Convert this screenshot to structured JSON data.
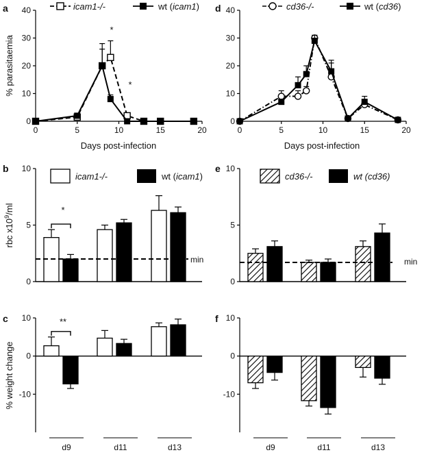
{
  "chart_data": [
    {
      "panel": "a",
      "type": "line",
      "xlabel": "Days post-infection",
      "ylabel": "% parasitaemia",
      "xlim": [
        0,
        20
      ],
      "ylim": [
        0,
        40
      ],
      "xticks": [
        "0",
        "5",
        "10",
        "15",
        "20"
      ],
      "yticks": [
        "0",
        "10",
        "20",
        "30",
        "40"
      ],
      "series": [
        {
          "name_italic": "icam1-/-",
          "name_plain": "",
          "name_tail": "",
          "marker": "open-square",
          "line": "dashed",
          "x": [
            0,
            5,
            8,
            9,
            11,
            13,
            15,
            19
          ],
          "y": [
            0,
            1.5,
            20,
            23,
            2,
            0,
            0,
            0
          ],
          "err": [
            0,
            0.5,
            8,
            6,
            0.5,
            0,
            0,
            0
          ]
        },
        {
          "name_italic": "icam1",
          "name_plain": "wt (",
          "name_tail": ")",
          "marker": "filled-square",
          "line": "solid",
          "x": [
            0,
            5,
            8,
            9,
            11,
            13,
            15,
            19
          ],
          "y": [
            0,
            2,
            20,
            8,
            0,
            0,
            0,
            0
          ],
          "err": [
            0,
            0.5,
            6,
            1.5,
            0,
            0,
            0,
            0
          ]
        }
      ],
      "annotations": [
        "*",
        "*"
      ]
    },
    {
      "panel": "d",
      "type": "line",
      "xlabel": "Days post-infection",
      "ylabel": "",
      "xlim": [
        0,
        20
      ],
      "ylim": [
        0,
        40
      ],
      "xticks": [
        "0",
        "5",
        "10",
        "15",
        "20"
      ],
      "yticks": [
        "0",
        "10",
        "20",
        "30",
        "40"
      ],
      "series": [
        {
          "name_italic": "cd36-/-",
          "name_plain": "",
          "name_tail": "",
          "marker": "open-circle",
          "line": "dashdot",
          "x": [
            0,
            5,
            7,
            8,
            9,
            11,
            13,
            15,
            19
          ],
          "y": [
            0,
            9,
            9,
            11,
            30,
            16,
            1,
            6,
            0.5
          ],
          "err": [
            0,
            2,
            2,
            1.5,
            1,
            6,
            0,
            1.5,
            0
          ]
        },
        {
          "name_italic": "cd36",
          "name_plain": "wt (",
          "name_tail": ")",
          "marker": "filled-square",
          "line": "solid",
          "x": [
            0,
            5,
            7,
            8,
            9,
            11,
            13,
            15,
            19
          ],
          "y": [
            0,
            7,
            13,
            17,
            29,
            18,
            1,
            7,
            0.5
          ],
          "err": [
            0,
            1,
            3,
            3,
            2,
            3,
            0,
            2,
            0
          ]
        }
      ]
    },
    {
      "panel": "b",
      "type": "bar",
      "ylabel_main": "rbc x10",
      "ylabel_sup": "9",
      "ylabel_tail": "/ml",
      "ylim": [
        0,
        10
      ],
      "yticks": [
        "0",
        "5",
        "10"
      ],
      "categories": [
        "d9",
        "d11",
        "d13"
      ],
      "series": [
        {
          "name_italic": "icam1-/-",
          "name_plain": "",
          "name_tail": "",
          "fill": "white",
          "values": [
            3.9,
            4.6,
            6.3
          ],
          "err": [
            0.7,
            0.4,
            1.3
          ]
        },
        {
          "name_italic": "icam1",
          "name_plain": "wt (",
          "name_tail": ")",
          "fill": "black",
          "values": [
            2.0,
            5.2,
            6.1
          ],
          "err": [
            0.4,
            0.3,
            0.5
          ]
        }
      ],
      "reference_line": {
        "value": 2.0,
        "label": "min"
      },
      "significance": [
        {
          "category": "d9",
          "label": "*"
        }
      ]
    },
    {
      "panel": "e",
      "type": "bar",
      "ylim": [
        0,
        10
      ],
      "yticks": [
        "0",
        "5",
        "10"
      ],
      "categories": [
        "d9",
        "d11",
        "d13"
      ],
      "series": [
        {
          "name_italic": "cd36-/-",
          "name_plain": "",
          "name_tail": "",
          "fill": "hatched",
          "values": [
            2.5,
            1.7,
            3.1
          ],
          "err": [
            0.4,
            0.2,
            0.5
          ]
        },
        {
          "name_italic": "wt (cd36)",
          "name_plain": "",
          "name_tail": "",
          "fill": "black",
          "values": [
            3.1,
            1.7,
            4.3
          ],
          "err": [
            0.5,
            0.3,
            0.8
          ]
        }
      ],
      "reference_line": {
        "value": 1.7,
        "label": "min"
      }
    },
    {
      "panel": "c",
      "type": "bar",
      "ylabel": "% weight change",
      "ylim": [
        -20,
        10
      ],
      "yticks": [
        "10",
        "0",
        "-10"
      ],
      "categories": [
        "d9",
        "d11",
        "d13"
      ],
      "series": [
        {
          "name": "icam1-/-",
          "fill": "white",
          "values": [
            2.7,
            4.7,
            7.7
          ],
          "err": [
            2.3,
            2.0,
            1.0
          ]
        },
        {
          "name": "wt (icam1)",
          "fill": "black",
          "values": [
            -7.3,
            3.3,
            8.2
          ],
          "err": [
            1.2,
            1.1,
            1.5
          ]
        }
      ],
      "significance": [
        {
          "category": "d9",
          "label": "**"
        }
      ]
    },
    {
      "panel": "f",
      "type": "bar",
      "ylim": [
        -20,
        10
      ],
      "yticks": [
        "10",
        "0",
        "-10"
      ],
      "categories": [
        "d9",
        "d11",
        "d13"
      ],
      "series": [
        {
          "name": "cd36-/-",
          "fill": "hatched",
          "values": [
            -7.0,
            -11.7,
            -3.0
          ],
          "err": [
            1.5,
            1.4,
            2.5
          ]
        },
        {
          "name": "wt (cd36)",
          "fill": "black",
          "values": [
            -4.3,
            -13.5,
            -5.8
          ],
          "err": [
            2.0,
            1.7,
            1.6
          ]
        }
      ]
    }
  ]
}
